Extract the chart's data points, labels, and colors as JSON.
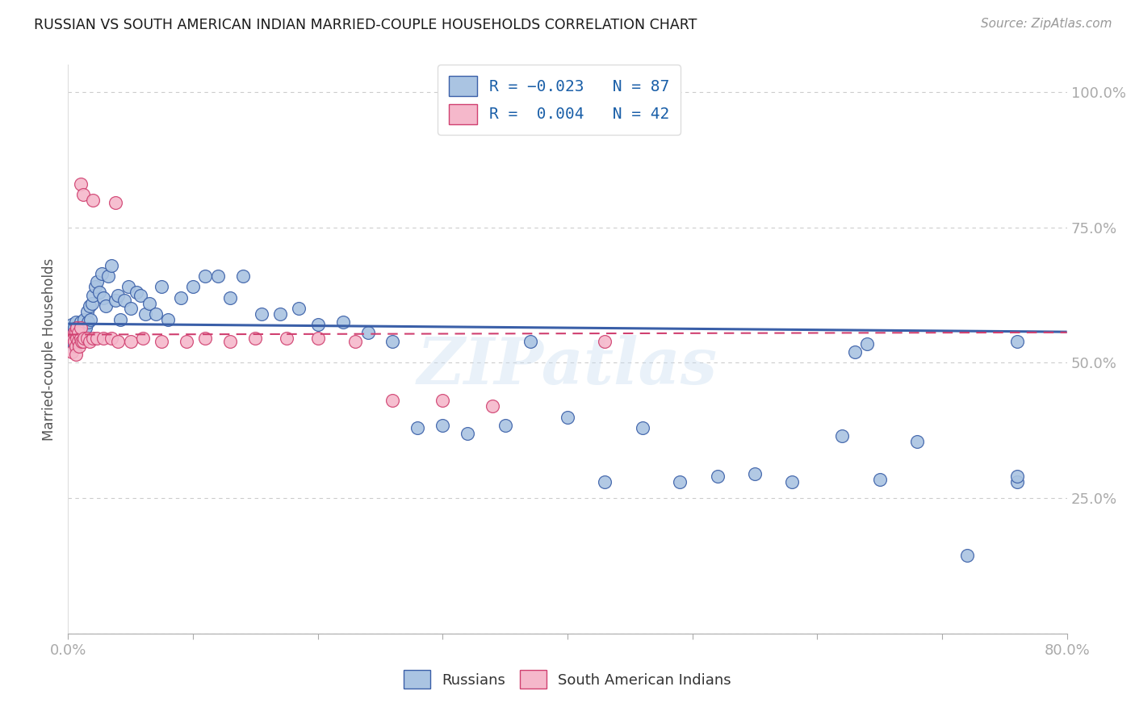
{
  "title": "RUSSIAN VS SOUTH AMERICAN INDIAN MARRIED-COUPLE HOUSEHOLDS CORRELATION CHART",
  "source": "Source: ZipAtlas.com",
  "ylabel": "Married-couple Households",
  "xlim": [
    0.0,
    0.8
  ],
  "ylim": [
    0.0,
    1.05
  ],
  "xticks": [
    0.0,
    0.1,
    0.2,
    0.3,
    0.4,
    0.5,
    0.6,
    0.7,
    0.8
  ],
  "xticklabels": [
    "0.0%",
    "",
    "",
    "",
    "",
    "",
    "",
    "",
    "80.0%"
  ],
  "yticks": [
    0.0,
    0.25,
    0.5,
    0.75,
    1.0
  ],
  "yticklabels": [
    "",
    "25.0%",
    "50.0%",
    "75.0%",
    "100.0%"
  ],
  "watermark": "ZIPatlas",
  "russian_color": "#aac4e2",
  "sam_indian_color": "#f5b8cb",
  "russian_line_color": "#3a5fa8",
  "sam_indian_line_color": "#d04070",
  "grid_color": "#cccccc",
  "bg_color": "#ffffff",
  "title_color": "#1a1a1a",
  "tick_color": "#4472c4",
  "russians_x": [
    0.003,
    0.004,
    0.004,
    0.005,
    0.005,
    0.005,
    0.006,
    0.006,
    0.006,
    0.007,
    0.007,
    0.007,
    0.008,
    0.008,
    0.009,
    0.009,
    0.01,
    0.01,
    0.01,
    0.011,
    0.011,
    0.012,
    0.012,
    0.013,
    0.013,
    0.014,
    0.015,
    0.016,
    0.017,
    0.018,
    0.019,
    0.02,
    0.022,
    0.023,
    0.025,
    0.027,
    0.028,
    0.03,
    0.032,
    0.035,
    0.038,
    0.04,
    0.042,
    0.045,
    0.048,
    0.05,
    0.055,
    0.058,
    0.062,
    0.065,
    0.07,
    0.075,
    0.08,
    0.09,
    0.1,
    0.11,
    0.12,
    0.13,
    0.14,
    0.155,
    0.17,
    0.185,
    0.2,
    0.22,
    0.24,
    0.26,
    0.28,
    0.3,
    0.32,
    0.35,
    0.37,
    0.4,
    0.43,
    0.46,
    0.49,
    0.52,
    0.55,
    0.58,
    0.62,
    0.65,
    0.68,
    0.72,
    0.76,
    0.63,
    0.64,
    0.76,
    0.76
  ],
  "russians_y": [
    0.57,
    0.555,
    0.545,
    0.54,
    0.565,
    0.53,
    0.555,
    0.575,
    0.56,
    0.535,
    0.555,
    0.565,
    0.55,
    0.56,
    0.54,
    0.555,
    0.55,
    0.54,
    0.575,
    0.555,
    0.565,
    0.545,
    0.565,
    0.56,
    0.58,
    0.565,
    0.595,
    0.575,
    0.605,
    0.58,
    0.61,
    0.625,
    0.64,
    0.65,
    0.63,
    0.665,
    0.62,
    0.605,
    0.66,
    0.68,
    0.615,
    0.625,
    0.58,
    0.615,
    0.64,
    0.6,
    0.63,
    0.625,
    0.59,
    0.61,
    0.59,
    0.64,
    0.58,
    0.62,
    0.64,
    0.66,
    0.66,
    0.62,
    0.66,
    0.59,
    0.59,
    0.6,
    0.57,
    0.575,
    0.555,
    0.54,
    0.38,
    0.385,
    0.37,
    0.385,
    0.54,
    0.4,
    0.28,
    0.38,
    0.28,
    0.29,
    0.295,
    0.28,
    0.365,
    0.285,
    0.355,
    0.145,
    0.54,
    0.52,
    0.535,
    0.28,
    0.29
  ],
  "sam_indians_x": [
    0.003,
    0.004,
    0.005,
    0.005,
    0.006,
    0.006,
    0.006,
    0.007,
    0.007,
    0.008,
    0.008,
    0.009,
    0.01,
    0.01,
    0.011,
    0.012,
    0.013,
    0.015,
    0.017,
    0.02,
    0.023,
    0.028,
    0.035,
    0.04,
    0.05,
    0.06,
    0.075,
    0.095,
    0.11,
    0.13,
    0.15,
    0.175,
    0.2,
    0.23,
    0.26,
    0.3,
    0.34,
    0.01,
    0.012,
    0.02,
    0.038,
    0.43
  ],
  "sam_indians_y": [
    0.52,
    0.545,
    0.54,
    0.555,
    0.53,
    0.555,
    0.515,
    0.545,
    0.565,
    0.54,
    0.555,
    0.53,
    0.545,
    0.565,
    0.54,
    0.54,
    0.545,
    0.545,
    0.54,
    0.545,
    0.545,
    0.545,
    0.545,
    0.54,
    0.54,
    0.545,
    0.54,
    0.54,
    0.545,
    0.54,
    0.545,
    0.545,
    0.545,
    0.54,
    0.43,
    0.43,
    0.42,
    0.83,
    0.81,
    0.8,
    0.795,
    0.54
  ],
  "russian_trend_x": [
    0.0,
    0.8
  ],
  "russian_trend_y": [
    0.572,
    0.557
  ],
  "sam_trend_x": [
    0.0,
    0.38
  ],
  "sam_trend_y": [
    0.549,
    0.553
  ]
}
